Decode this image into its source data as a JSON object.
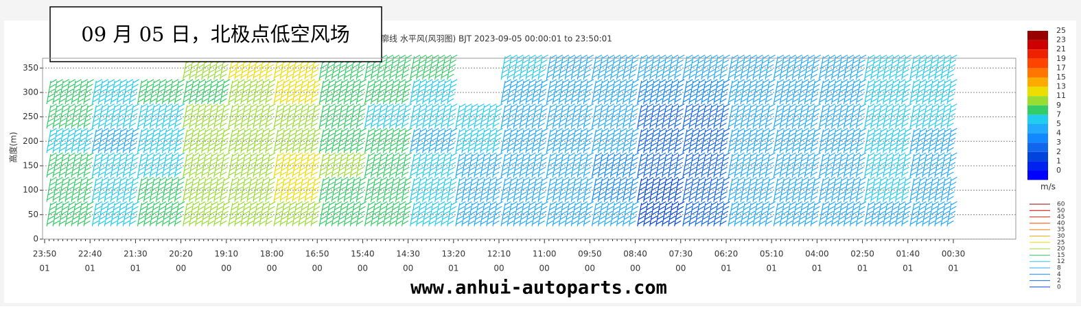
{
  "chart_data": {
    "type": "barb",
    "title": "09 月 05 日，北极点低空风场",
    "subtitle": "廓线 水平风(风羽图) BJT 2023-09-05 00:00:01 to 23:50:01",
    "y_label": "高度(m)",
    "watermark": "www.anhui-autoparts.com",
    "ylim": [
      0,
      370
    ],
    "yticks": [
      0,
      50,
      100,
      150,
      200,
      250,
      300,
      350
    ],
    "grid": true,
    "x_labels": [
      {
        "time": "23:50",
        "day": "01"
      },
      {
        "time": "22:40",
        "day": "01"
      },
      {
        "time": "21:30",
        "day": "01"
      },
      {
        "time": "20:20",
        "day": "00"
      },
      {
        "time": "19:10",
        "day": "00"
      },
      {
        "time": "18:00",
        "day": "00"
      },
      {
        "time": "16:50",
        "day": "00"
      },
      {
        "time": "15:40",
        "day": "00"
      },
      {
        "time": "14:30",
        "day": "00"
      },
      {
        "time": "13:20",
        "day": "01"
      },
      {
        "time": "12:10",
        "day": "00"
      },
      {
        "time": "11:00",
        "day": "00"
      },
      {
        "time": "09:50",
        "day": "00"
      },
      {
        "time": "08:40",
        "day": "00"
      },
      {
        "time": "07:30",
        "day": "00"
      },
      {
        "time": "06:20",
        "day": "01"
      },
      {
        "time": "05:10",
        "day": "01"
      },
      {
        "time": "04:00",
        "day": "01"
      },
      {
        "time": "02:50",
        "day": "01"
      },
      {
        "time": "01:40",
        "day": "01"
      },
      {
        "time": "00:30",
        "day": "01"
      }
    ],
    "heights": [
      50,
      100,
      150,
      200,
      250,
      300,
      350
    ],
    "speeds": [
      [
        9,
        9,
        9,
        8,
        9,
        10,
        null
      ],
      [
        8,
        8,
        7,
        6,
        7,
        8,
        null
      ],
      [
        9,
        9,
        8,
        7,
        7,
        9,
        null
      ],
      [
        11,
        12,
        11,
        11,
        11,
        10,
        12
      ],
      [
        12,
        12,
        11,
        12,
        11,
        11,
        13
      ],
      [
        12,
        14,
        13,
        12,
        12,
        13,
        14
      ],
      [
        9,
        10,
        11,
        9,
        9,
        9,
        9
      ],
      [
        9,
        9,
        9,
        9,
        8,
        9,
        10
      ],
      [
        8,
        7,
        7,
        6,
        7,
        8,
        9
      ],
      [
        6,
        6,
        6,
        7,
        8,
        null,
        null
      ],
      [
        6,
        6,
        6,
        6,
        6,
        6,
        7
      ],
      [
        5,
        5,
        5,
        5,
        6,
        6,
        6
      ],
      [
        5,
        4,
        4,
        5,
        5,
        6,
        6
      ],
      [
        2,
        2,
        3,
        3,
        3,
        4,
        5
      ],
      [
        3,
        3,
        3,
        3,
        3,
        4,
        5
      ],
      [
        5,
        5,
        5,
        5,
        5,
        5,
        5
      ],
      [
        5,
        5,
        5,
        5,
        5,
        5,
        5
      ],
      [
        6,
        5,
        5,
        6,
        6,
        6,
        6
      ],
      [
        6,
        7,
        8,
        8,
        7,
        7,
        7
      ],
      [
        6,
        6,
        6,
        6,
        7,
        7,
        7
      ]
    ],
    "colorbar": {
      "unit": "m/s",
      "levels": [
        25,
        23,
        21,
        19,
        17,
        15,
        13,
        11,
        9,
        7,
        5,
        4,
        3,
        2,
        1,
        0
      ],
      "colors": [
        "#990000",
        "#cc0000",
        "#ee2200",
        "#ff4400",
        "#ff7700",
        "#ffaa00",
        "#eedd00",
        "#99dd33",
        "#33cc66",
        "#22ccee",
        "#22aaff",
        "#1188ff",
        "#1166ee",
        "#0044dd",
        "#0022ee",
        "#0000ff"
      ]
    },
    "barb_legend": [
      60,
      50,
      45,
      40,
      35,
      30,
      25,
      20,
      15,
      12,
      8,
      4,
      2,
      0
    ]
  }
}
